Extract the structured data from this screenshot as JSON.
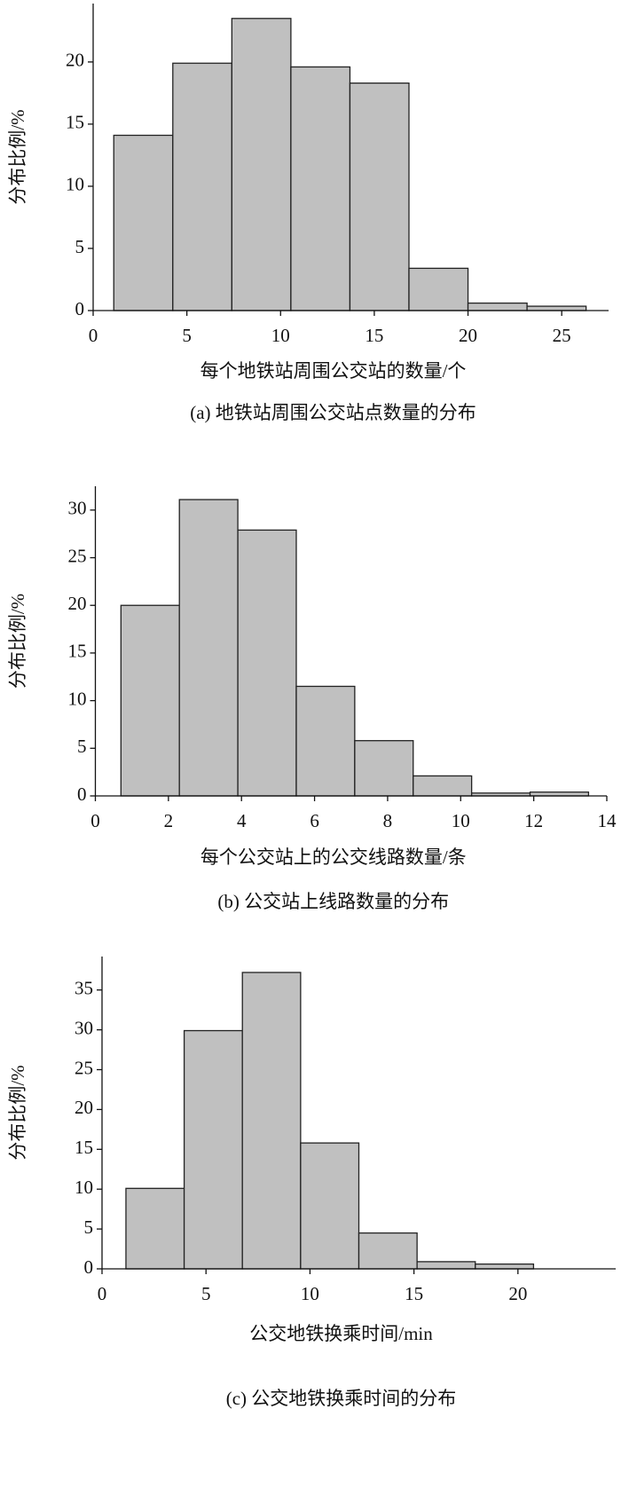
{
  "chart_data": [
    {
      "type": "histogram",
      "caption": "(a) 地铁站周围公交站点数量的分布",
      "x_label": "每个地铁站周围公交站的数量/个",
      "y_label": "分布比例/%",
      "bins": [
        1.1,
        4.25,
        7.4,
        10.55,
        13.7,
        16.85,
        20,
        23.15,
        26.3
      ],
      "values": [
        14.1,
        19.9,
        23.5,
        19.6,
        18.3,
        3.4,
        0.6,
        0.35
      ],
      "color": "#c0c0c0",
      "xlim": [
        0,
        27.5
      ],
      "xticks": [
        0,
        5,
        10,
        15,
        20,
        25
      ],
      "ylim": [
        0,
        24.7
      ],
      "yticks": [
        0,
        5,
        10,
        15,
        20
      ]
    },
    {
      "type": "histogram",
      "caption": "(b) 公交站上线路数量的分布",
      "x_label": "每个公交站上的公交线路数量/条",
      "y_label": "分布比例/%",
      "bins": [
        0.7,
        2.3,
        3.9,
        5.5,
        7.1,
        8.7,
        10.3,
        11.9,
        13.5
      ],
      "values": [
        20,
        31.1,
        27.9,
        11.5,
        5.8,
        2.1,
        0.3,
        0.4
      ],
      "color": "#c0c0c0",
      "xlim": [
        0,
        14
      ],
      "xticks": [
        0,
        2,
        4,
        6,
        8,
        10,
        12,
        14
      ],
      "ylim": [
        0,
        32.5
      ],
      "yticks": [
        0,
        5,
        10,
        15,
        20,
        25,
        30
      ]
    },
    {
      "type": "histogram",
      "caption": "(c) 公交地铁换乘时间的分布",
      "x_label": "公交地铁换乘时间/min",
      "y_label": "分布比例/%",
      "bins": [
        1.15,
        3.95,
        6.75,
        9.55,
        12.35,
        15.15,
        17.95,
        20.75
      ],
      "values": [
        10.1,
        29.9,
        37.2,
        15.8,
        4.5,
        0.9,
        0.6
      ],
      "color": "#c0c0c0",
      "xlim": [
        0,
        24.7
      ],
      "xticks": [
        0,
        5,
        10,
        15,
        20
      ],
      "ylim": [
        0,
        39.2
      ],
      "yticks": [
        0,
        5,
        10,
        15,
        20,
        25,
        30,
        35
      ]
    }
  ]
}
